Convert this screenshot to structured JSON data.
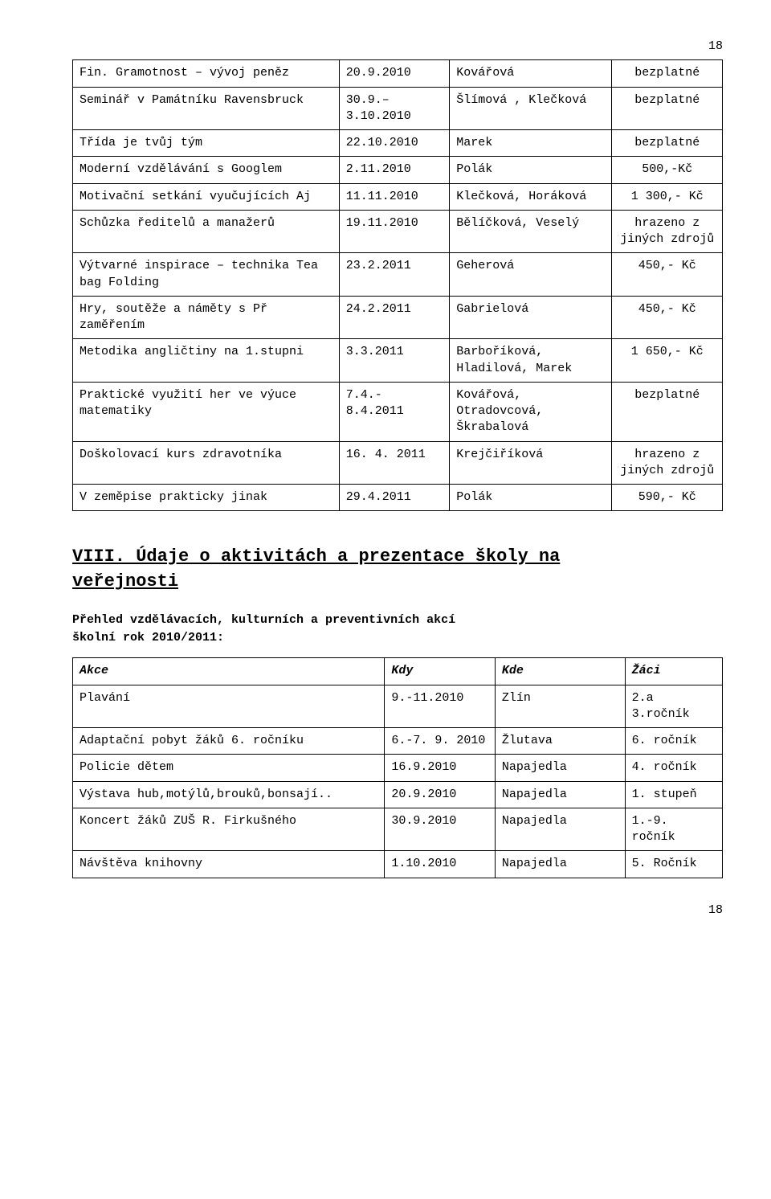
{
  "page_number": "18",
  "table1": {
    "rows": [
      {
        "c1": "Fin. Gramotnost – vývoj peněz",
        "c2": "20.9.2010",
        "c3": "Kovářová",
        "c4": "bezplatné"
      },
      {
        "c1": "Seminář v Památníku Ravensbruck",
        "c2": "30.9.– 3.10.2010",
        "c3": "Šlímová , Klečková",
        "c4": "bezplatné"
      },
      {
        "c1": "Třída je tvůj tým",
        "c2": "22.10.2010",
        "c3": "Marek",
        "c4": "bezplatné"
      },
      {
        "c1": "Moderní vzdělávání s Googlem",
        "c2": "2.11.2010",
        "c3": "Polák",
        "c4": "500,-Kč"
      },
      {
        "c1": "Motivační setkání vyučujících Aj",
        "c2": "11.11.2010",
        "c3": "Klečková, Horáková",
        "c4": "1 300,- Kč"
      },
      {
        "c1": "Schůzka ředitelů a manažerů",
        "c2": "19.11.2010",
        "c3": "Bělíčková, Veselý",
        "c4": "hrazeno z jiných zdrojů"
      },
      {
        "c1": "Výtvarné inspirace – technika Tea bag Folding",
        "c2": "23.2.2011",
        "c3": "Geherová",
        "c4": "450,- Kč"
      },
      {
        "c1": "Hry, soutěže a náměty s Př zaměřením",
        "c2": "24.2.2011",
        "c3": "Gabrielová",
        "c4": "450,- Kč"
      },
      {
        "c1": "Metodika angličtiny na 1.stupni",
        "c2": "3.3.2011",
        "c3": "Barboříková, Hladilová, Marek",
        "c4": "1 650,- Kč"
      },
      {
        "c1": "Praktické využití her ve výuce matematiky",
        "c2": "7.4.- 8.4.2011",
        "c3": "Kovářová, Otradovcová, Škrabalová",
        "c4": "bezplatné"
      },
      {
        "c1": "Doškolovací kurs zdravotníka",
        "c2": "16. 4. 2011",
        "c3": "Krejčiříková",
        "c4": "hrazeno z jiných zdrojů"
      },
      {
        "c1": "V zeměpise prakticky jinak",
        "c2": "29.4.2011",
        "c3": "Polák",
        "c4": "590,- Kč"
      }
    ]
  },
  "section_heading_l1": "VIII. Údaje o aktivitách a prezentace školy na",
  "section_heading_l2": "veřejnosti",
  "sub_line1": "Přehled vzdělávacích, kulturních a preventivních akcí",
  "sub_line2": "školní rok 2010/2011:",
  "table2": {
    "header": {
      "d1": "Akce",
      "d2": "Kdy",
      "d3": "Kde",
      "d4": "Žáci"
    },
    "rows": [
      {
        "d1": "Plavání",
        "d2": "9.-11.2010",
        "d3": "Zlín",
        "d4": "2.a 3.ročník"
      },
      {
        "d1": "Adaptační pobyt žáků 6. ročníku",
        "d2": "6.-7. 9. 2010",
        "d3": "Žlutava",
        "d4": "6. ročník"
      },
      {
        "d1": "Policie dětem",
        "d2": "16.9.2010",
        "d3": "Napajedla",
        "d4": "4. ročník"
      },
      {
        "d1": "Výstava hub,motýlů,brouků,bonsají..",
        "d2": "20.9.2010",
        "d3": "Napajedla",
        "d4": "1. stupeň"
      },
      {
        "d1": "Koncert žáků ZUŠ R. Firkušného",
        "d2": "30.9.2010",
        "d3": "Napajedla",
        "d4": "1.-9. ročník"
      },
      {
        "d1": "Návštěva knihovny",
        "d2": "1.10.2010",
        "d3": "Napajedla",
        "d4": "5. Ročník"
      }
    ]
  }
}
